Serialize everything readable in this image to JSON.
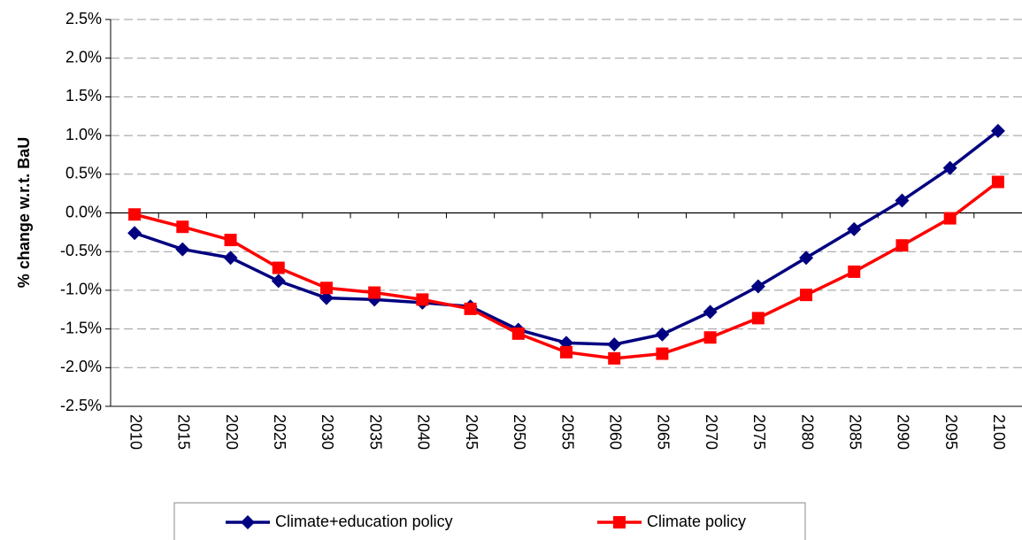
{
  "chart_data": {
    "type": "line",
    "y_label": "% change w.r.t. BaU",
    "categories": [
      "2010",
      "2015",
      "2020",
      "2025",
      "2030",
      "2035",
      "2040",
      "2045",
      "2050",
      "2055",
      "2060",
      "2065",
      "2070",
      "2075",
      "2080",
      "2085",
      "2090",
      "2095",
      "2100"
    ],
    "series": [
      {
        "name": "Climate+education policy",
        "color": "#000080",
        "marker": "diamond",
        "values": [
          -0.26,
          -0.47,
          -0.58,
          -0.88,
          -1.1,
          -1.12,
          -1.16,
          -1.21,
          -1.51,
          -1.68,
          -1.7,
          -1.57,
          -1.28,
          -0.95,
          -0.58,
          -0.21,
          0.16,
          0.58,
          1.06
        ]
      },
      {
        "name": "Climate policy",
        "color": "#ff0000",
        "marker": "square",
        "values": [
          -0.02,
          -0.18,
          -0.35,
          -0.71,
          -0.97,
          -1.03,
          -1.12,
          -1.24,
          -1.56,
          -1.8,
          -1.88,
          -1.82,
          -1.61,
          -1.36,
          -1.06,
          -0.76,
          -0.42,
          -0.07,
          0.4
        ]
      }
    ],
    "ylim": [
      -2.5,
      2.5
    ],
    "yticks": [
      {
        "value": -2.5,
        "label": "-2.5%"
      },
      {
        "value": -2,
        "label": "-2.0%"
      },
      {
        "value": -1.5,
        "label": "-1.5%"
      },
      {
        "value": -1,
        "label": "-1.0%"
      },
      {
        "value": -0.5,
        "label": "-0.5%"
      },
      {
        "value": 0,
        "label": "0.0%"
      },
      {
        "value": 0.5,
        "label": "0.5%"
      },
      {
        "value": 1,
        "label": "1.0%"
      },
      {
        "value": 1.5,
        "label": "1.5%"
      },
      {
        "value": 2,
        "label": "2.0%"
      },
      {
        "value": 2.5,
        "label": "2.5%"
      }
    ],
    "grid": true,
    "legend": "bottom"
  }
}
